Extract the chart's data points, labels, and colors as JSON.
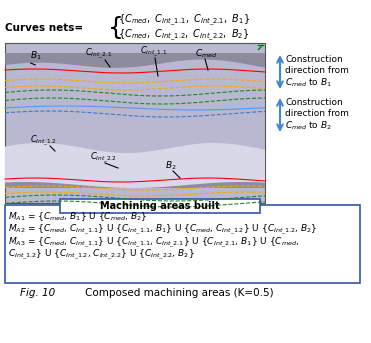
{
  "title": "Fig. 10      Composed machining areas (K=0.5)",
  "curves_nets_label": "Curves nets=",
  "curves_nets_line1": "{Cₘₑₙ, Cᴵₙₜ₋₁.₁, Cᴵₙₜ₋₂.₁, B₁}",
  "curves_nets_line2": "{Cₘₑₙ, Cᴵₙₜ₋₁.₂, Cᴵₙₜ₋₂.₂, B₂}",
  "construction_dir1": "Construction\ndirection from\nCₘₑₙ to B₁",
  "construction_dir2": "Construction\ndirection from\nCₘₑₙ to B₂",
  "machining_title": "Machining areas built",
  "MA1": "M₁ = {Cₘₑₙ, B₁} U {Cₘₑₙ, B₂}",
  "MA2": "M₂ = {Cₘₑₙ, Cᴵₙₜ₋₁.₁} U {Cᴵₙₜ₋₁.₁, B₁} U {Cₘₑₙ, Cᴵₙₜ₋₁.₂} U {Cᴵₙₜ₋₁.₂, B₂}",
  "MA3_line1": "M₃ = {Cₘₑₙ, Cᴵₙₜ₋₁.₁} U {Cᴵₙₜ₋₁.₁, Cᴵₙₜ₋₂.₁} U {Cᴵₙₜ₋₂.₁, B₁} U {Cₘₑₙ,",
  "MA3_line2": "Cᴵₙₜ₋₁.₂} U {Cᴵₙₜ₋₁.₂, Cᴵₙₜ₋₂.₂} U {Cᴵₙₜ₋₂.₂, B₂}",
  "background_color": "#ffffff"
}
